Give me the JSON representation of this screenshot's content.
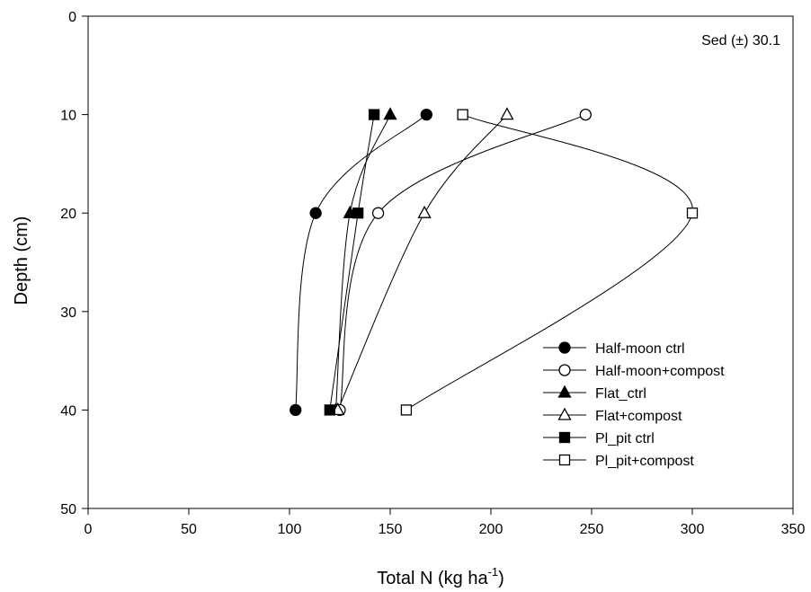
{
  "chart_data": {
    "type": "line",
    "xlabel": "Total N (kg ha",
    "xlabel_sup": "-1",
    "xlabel_end": ")",
    "ylabel": "Depth (cm)",
    "annotation": "Sed (±) 30.1",
    "xlim": [
      0,
      350
    ],
    "ylim": [
      0,
      50
    ],
    "y_inverted": true,
    "x_ticks": [
      0,
      50,
      100,
      150,
      200,
      250,
      300,
      350
    ],
    "y_ticks": [
      0,
      10,
      20,
      30,
      40,
      50
    ],
    "grid": false,
    "legend_position": "bottom-right",
    "series": [
      {
        "name": "Half-moon ctrl",
        "marker": "circle",
        "filled": true,
        "points": [
          [
            168,
            10
          ],
          [
            113,
            20
          ],
          [
            103,
            40
          ]
        ]
      },
      {
        "name": "Half-moon+compost",
        "marker": "circle",
        "filled": false,
        "points": [
          [
            247,
            10
          ],
          [
            144,
            20
          ],
          [
            125,
            40
          ]
        ]
      },
      {
        "name": "Flat_ctrl",
        "marker": "triangle",
        "filled": true,
        "points": [
          [
            150,
            10
          ],
          [
            130,
            20
          ],
          [
            123,
            40
          ]
        ]
      },
      {
        "name": "Flat+compost",
        "marker": "triangle",
        "filled": false,
        "points": [
          [
            208,
            10
          ],
          [
            167,
            20
          ],
          [
            124,
            40
          ]
        ]
      },
      {
        "name": "Pl_pit ctrl",
        "marker": "square",
        "filled": true,
        "points": [
          [
            142,
            10
          ],
          [
            134,
            20
          ],
          [
            120,
            40
          ]
        ]
      },
      {
        "name": "Pl_pit+compost",
        "marker": "square",
        "filled": false,
        "points": [
          [
            186,
            10
          ],
          [
            300,
            20
          ],
          [
            158,
            40
          ]
        ]
      }
    ]
  }
}
